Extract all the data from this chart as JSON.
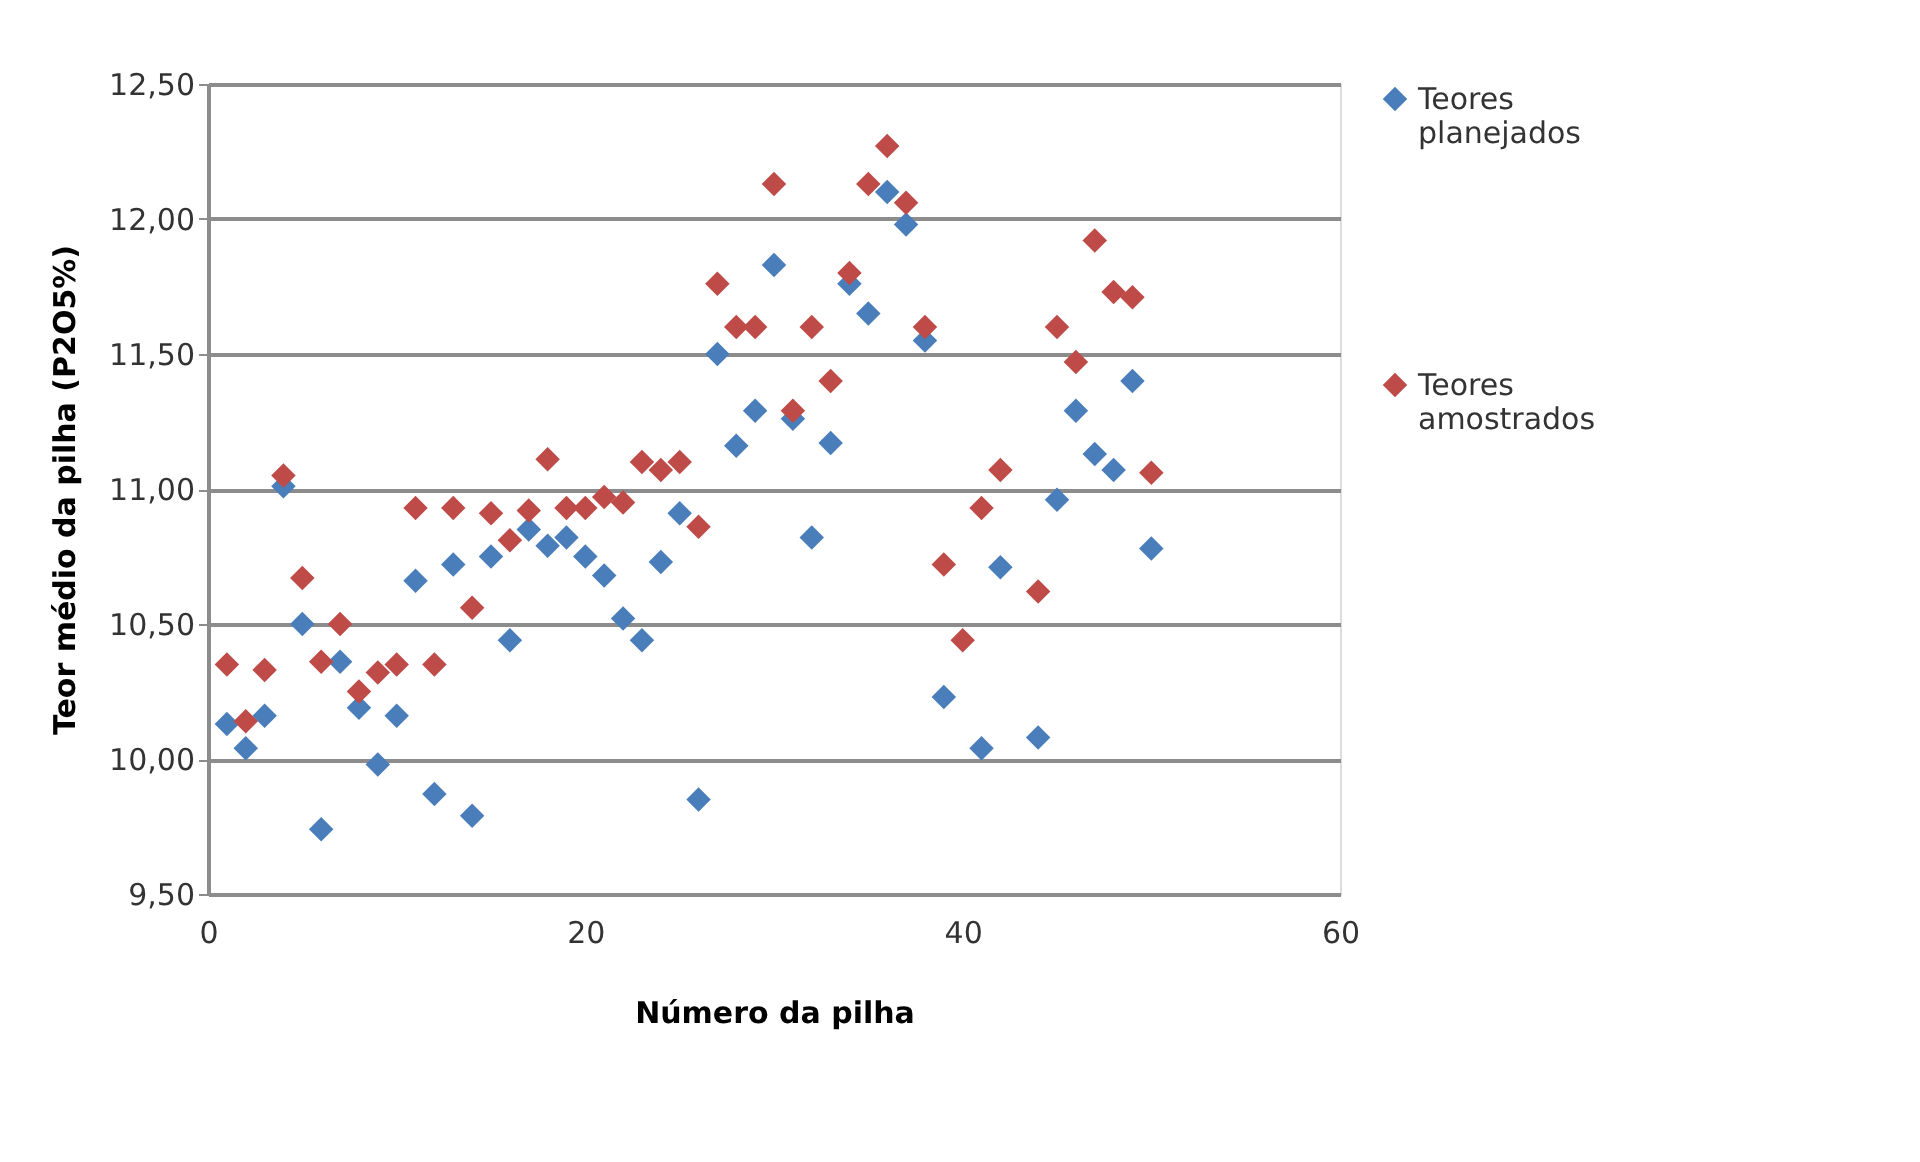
{
  "chart_data": {
    "type": "scatter",
    "xlabel": "Número da pilha",
    "ylabel": "Teor médio da pilha  (P2O5%)",
    "xlim": [
      0,
      60
    ],
    "xticks": [
      0,
      20,
      40,
      60
    ],
    "ylim": [
      9.5,
      12.5
    ],
    "yticks": [
      {
        "value": 9.5,
        "label": "9,50"
      },
      {
        "value": 10,
        "label": "10,00"
      },
      {
        "value": 10.5,
        "label": "10,50"
      },
      {
        "value": 11,
        "label": "11,00"
      },
      {
        "value": 11.5,
        "label": "11,50"
      },
      {
        "value": 12,
        "label": "12,00"
      },
      {
        "value": 12.5,
        "label": "12,50"
      }
    ],
    "grid": "y",
    "legend": "right",
    "marker": "diamond",
    "series": [
      {
        "name": "Teores planejados",
        "color": "#4a7ebb",
        "x": [
          1,
          2,
          3,
          4,
          5,
          6,
          7,
          8,
          9,
          10,
          11,
          12,
          13,
          14,
          15,
          16,
          17,
          18,
          19,
          20,
          21,
          22,
          23,
          24,
          25,
          26,
          27,
          28,
          29,
          30,
          31,
          32,
          33,
          34,
          35,
          36,
          37,
          38,
          39,
          41,
          42,
          44,
          45,
          46,
          47,
          48,
          49,
          50
        ],
        "values": [
          10.13,
          10.04,
          10.16,
          11.01,
          10.5,
          9.74,
          10.36,
          10.19,
          9.98,
          10.16,
          10.66,
          9.87,
          10.72,
          9.79,
          10.75,
          10.44,
          10.85,
          10.79,
          10.82,
          10.75,
          10.68,
          10.52,
          10.44,
          10.73,
          10.91,
          9.85,
          11.5,
          11.16,
          11.29,
          11.83,
          11.26,
          10.82,
          11.17,
          11.76,
          11.65,
          12.1,
          11.98,
          11.55,
          10.23,
          10.04,
          10.71,
          10.08,
          10.96,
          11.29,
          11.13,
          11.07,
          11.4,
          10.78
        ]
      },
      {
        "name": "Teores amostrados",
        "color": "#be4b48",
        "x": [
          1,
          2,
          3,
          4,
          5,
          6,
          7,
          8,
          9,
          10,
          11,
          12,
          13,
          14,
          15,
          16,
          17,
          18,
          19,
          20,
          21,
          22,
          23,
          24,
          25,
          26,
          27,
          28,
          29,
          30,
          31,
          32,
          33,
          34,
          35,
          36,
          37,
          38,
          39,
          40,
          41,
          42,
          44,
          45,
          46,
          47,
          48,
          49,
          50
        ],
        "values": [
          10.35,
          10.14,
          10.33,
          11.05,
          10.67,
          10.36,
          10.5,
          10.25,
          10.32,
          10.35,
          10.93,
          10.35,
          10.93,
          10.56,
          10.91,
          10.81,
          10.92,
          11.11,
          10.93,
          10.93,
          10.97,
          10.95,
          11.1,
          11.07,
          11.1,
          10.86,
          11.76,
          11.6,
          11.6,
          12.13,
          11.29,
          11.6,
          11.4,
          11.8,
          12.13,
          12.27,
          12.06,
          11.6,
          10.72,
          10.44,
          10.93,
          11.07,
          10.62,
          11.6,
          11.47,
          11.92,
          11.73,
          11.71,
          11.06
        ]
      }
    ]
  }
}
